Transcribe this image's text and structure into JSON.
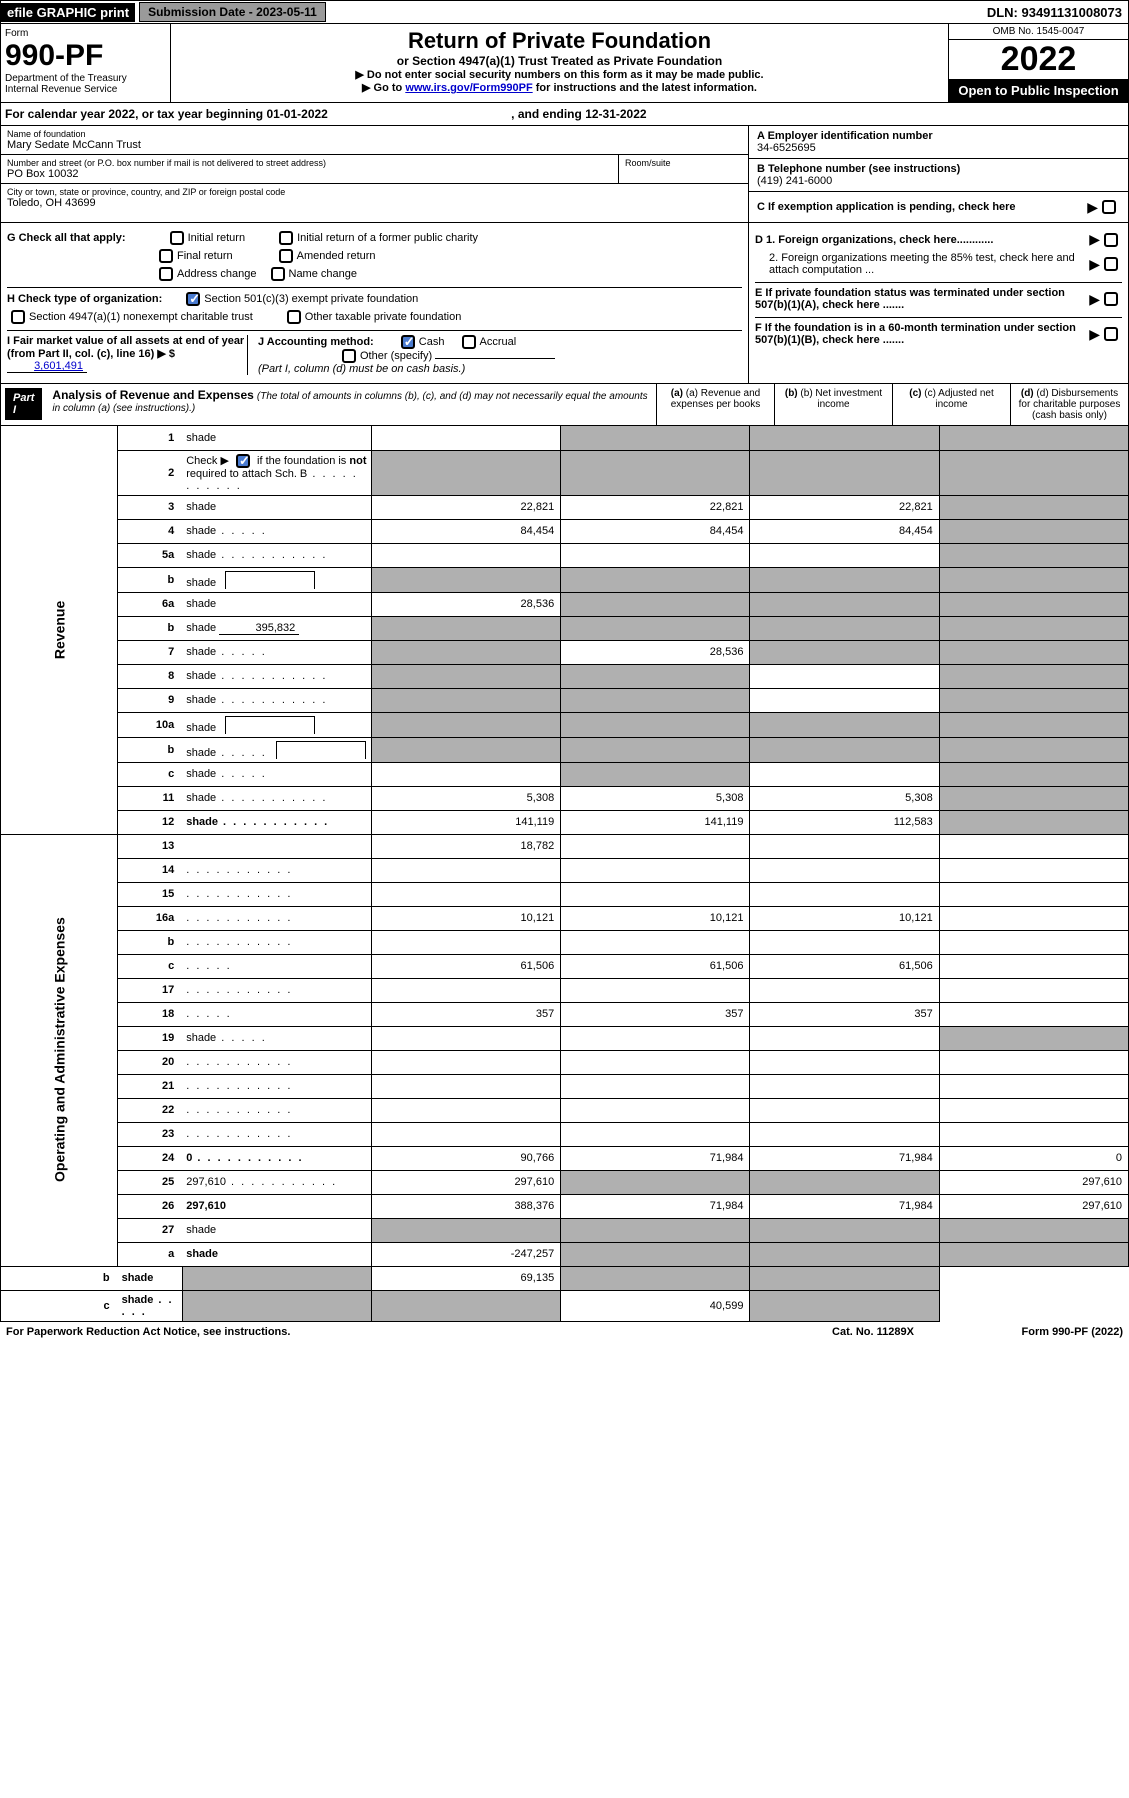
{
  "header": {
    "efile": "efile GRAPHIC print",
    "submission": "Submission Date - 2023-05-11",
    "dln": "DLN: 93491131008073"
  },
  "form": {
    "label": "Form",
    "number": "990-PF",
    "dept1": "Department of the Treasury",
    "dept2": "Internal Revenue Service",
    "title": "Return of Private Foundation",
    "subtitle": "or Section 4947(a)(1) Trust Treated as Private Foundation",
    "instr1": "▶ Do not enter social security numbers on this form as it may be made public.",
    "instr2_pre": "▶ Go to ",
    "instr2_link": "www.irs.gov/Form990PF",
    "instr2_post": " for instructions and the latest information.",
    "omb": "OMB No. 1545-0047",
    "year": "2022",
    "open_public": "Open to Public Inspection"
  },
  "cal_year": {
    "text_pre": "For calendar year 2022, or tax year beginning ",
    "begin": "01-01-2022",
    "text_mid": " , and ending ",
    "end": "12-31-2022"
  },
  "entity": {
    "name_label": "Name of foundation",
    "name": "Mary Sedate McCann Trust",
    "addr_label": "Number and street (or P.O. box number if mail is not delivered to street address)",
    "addr": "PO Box 10032",
    "room_label": "Room/suite",
    "city_label": "City or town, state or province, country, and ZIP or foreign postal code",
    "city": "Toledo, OH  43699",
    "a_label": "A Employer identification number",
    "a_val": "34-6525695",
    "b_label": "B Telephone number (see instructions)",
    "b_val": "(419) 241-6000",
    "c_label": "C If exemption application is pending, check here",
    "d1_label": "D 1. Foreign organizations, check here............",
    "d2_label": "2. Foreign organizations meeting the 85% test, check here and attach computation ...",
    "e_label": "E  If private foundation status was terminated under section 507(b)(1)(A), check here .......",
    "f_label": "F  If the foundation is in a 60-month termination under section 507(b)(1)(B), check here ......."
  },
  "checks": {
    "g_label": "G Check all that apply:",
    "g_opts": [
      "Initial return",
      "Initial return of a former public charity",
      "Final return",
      "Amended return",
      "Address change",
      "Name change"
    ],
    "h_label": "H Check type of organization:",
    "h_opt1": "Section 501(c)(3) exempt private foundation",
    "h_opt2": "Section 4947(a)(1) nonexempt charitable trust",
    "h_opt3": "Other taxable private foundation",
    "i_label": "I Fair market value of all assets at end of year (from Part II, col. (c), line 16) ▶ $",
    "i_val": "3,601,491",
    "j_label": "J Accounting method:",
    "j_opts": [
      "Cash",
      "Accrual",
      "Other (specify)"
    ],
    "j_note": "(Part I, column (d) must be on cash basis.)"
  },
  "part1": {
    "label": "Part I",
    "title": "Analysis of Revenue and Expenses",
    "title_note": " (The total of amounts in columns (b), (c), and (d) may not necessarily equal the amounts in column (a) (see instructions).)",
    "col_a": "(a) Revenue and expenses per books",
    "col_b": "(b) Net investment income",
    "col_c": "(c) Adjusted net income",
    "col_d": "(d) Disbursements for charitable purposes (cash basis only)"
  },
  "side_labels": {
    "revenue": "Revenue",
    "expenses": "Operating and Administrative Expenses"
  },
  "rows": [
    {
      "n": "1",
      "d": "shade",
      "a": "",
      "b": "shade",
      "c": "shade"
    },
    {
      "n": "2",
      "d": "shade",
      "dots": true,
      "a": "shade",
      "b": "shade",
      "c": "shade",
      "checked": true
    },
    {
      "n": "3",
      "d": "shade",
      "a": "22,821",
      "b": "22,821",
      "c": "22,821"
    },
    {
      "n": "4",
      "d": "shade",
      "dots": "short",
      "a": "84,454",
      "b": "84,454",
      "c": "84,454"
    },
    {
      "n": "5a",
      "d": "shade",
      "dots": true,
      "a": "",
      "b": "",
      "c": ""
    },
    {
      "n": "b",
      "d": "shade",
      "inset": true,
      "a": "shade",
      "b": "shade",
      "c": "shade"
    },
    {
      "n": "6a",
      "d": "shade",
      "a": "28,536",
      "b": "shade",
      "c": "shade"
    },
    {
      "n": "b",
      "d": "shade",
      "under": "395,832",
      "a": "shade",
      "b": "shade",
      "c": "shade"
    },
    {
      "n": "7",
      "d": "shade",
      "dots": "short",
      "a": "shade",
      "b": "28,536",
      "c": "shade"
    },
    {
      "n": "8",
      "d": "shade",
      "dots": true,
      "a": "shade",
      "b": "shade",
      "c": ""
    },
    {
      "n": "9",
      "d": "shade",
      "dots": true,
      "a": "shade",
      "b": "shade",
      "c": ""
    },
    {
      "n": "10a",
      "d": "shade",
      "inset": true,
      "a": "shade",
      "b": "shade",
      "c": "shade"
    },
    {
      "n": "b",
      "d": "shade",
      "dots": "short",
      "inset": true,
      "a": "shade",
      "b": "shade",
      "c": "shade"
    },
    {
      "n": "c",
      "d": "shade",
      "dots": "short",
      "a": "",
      "b": "shade",
      "c": ""
    },
    {
      "n": "11",
      "d": "shade",
      "dots": true,
      "a": "5,308",
      "b": "5,308",
      "c": "5,308"
    },
    {
      "n": "12",
      "d": "shade",
      "dots": true,
      "bold": true,
      "a": "141,119",
      "b": "141,119",
      "c": "112,583"
    },
    {
      "n": "13",
      "d": "",
      "a": "18,782",
      "b": "",
      "c": ""
    },
    {
      "n": "14",
      "d": "",
      "dots": true,
      "a": "",
      "b": "",
      "c": ""
    },
    {
      "n": "15",
      "d": "",
      "dots": true,
      "a": "",
      "b": "",
      "c": ""
    },
    {
      "n": "16a",
      "d": "",
      "dots": true,
      "a": "10,121",
      "b": "10,121",
      "c": "10,121"
    },
    {
      "n": "b",
      "d": "",
      "dots": true,
      "a": "",
      "b": "",
      "c": ""
    },
    {
      "n": "c",
      "d": "",
      "dots": "short",
      "a": "61,506",
      "b": "61,506",
      "c": "61,506"
    },
    {
      "n": "17",
      "d": "",
      "dots": true,
      "a": "",
      "b": "",
      "c": ""
    },
    {
      "n": "18",
      "d": "",
      "dots": "short",
      "a": "357",
      "b": "357",
      "c": "357"
    },
    {
      "n": "19",
      "d": "shade",
      "dots": "short",
      "a": "",
      "b": "",
      "c": ""
    },
    {
      "n": "20",
      "d": "",
      "dots": true,
      "a": "",
      "b": "",
      "c": ""
    },
    {
      "n": "21",
      "d": "",
      "dots": true,
      "a": "",
      "b": "",
      "c": ""
    },
    {
      "n": "22",
      "d": "",
      "dots": true,
      "a": "",
      "b": "",
      "c": ""
    },
    {
      "n": "23",
      "d": "",
      "dots": true,
      "a": "",
      "b": "",
      "c": ""
    },
    {
      "n": "24",
      "d": "0",
      "dots": true,
      "bold": true,
      "a": "90,766",
      "b": "71,984",
      "c": "71,984"
    },
    {
      "n": "25",
      "d": "297,610",
      "dots": true,
      "a": "297,610",
      "b": "shade",
      "c": "shade"
    },
    {
      "n": "26",
      "d": "297,610",
      "bold": true,
      "a": "388,376",
      "b": "71,984",
      "c": "71,984"
    },
    {
      "n": "27",
      "d": "shade",
      "a": "shade",
      "b": "shade",
      "c": "shade"
    },
    {
      "n": "a",
      "d": "shade",
      "bold": true,
      "a": "-247,257",
      "b": "shade",
      "c": "shade"
    },
    {
      "n": "b",
      "d": "shade",
      "bold": true,
      "a": "shade",
      "b": "69,135",
      "c": "shade"
    },
    {
      "n": "c",
      "d": "shade",
      "dots": "short",
      "bold": true,
      "a": "shade",
      "b": "shade",
      "c": "40,599"
    }
  ],
  "footer": {
    "left": "For Paperwork Reduction Act Notice, see instructions.",
    "mid": "Cat. No. 11289X",
    "right": "Form 990-PF (2022)"
  }
}
